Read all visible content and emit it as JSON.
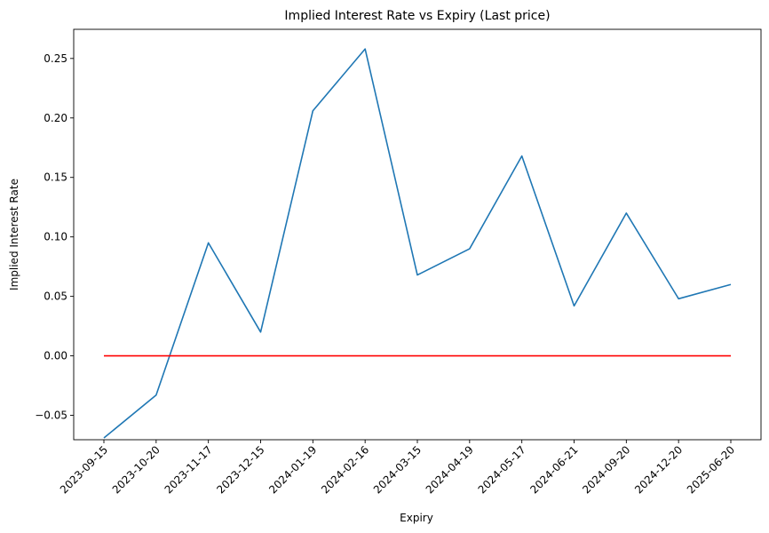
{
  "chart_data": {
    "type": "line",
    "title": "Implied Interest Rate vs Expiry (Last price)",
    "xlabel": "Expiry",
    "ylabel": "Implied Interest Rate",
    "categories": [
      "2023-09-15",
      "2023-10-20",
      "2023-11-17",
      "2023-12-15",
      "2024-01-19",
      "2024-02-16",
      "2024-03-15",
      "2024-04-19",
      "2024-05-17",
      "2024-06-21",
      "2024-09-20",
      "2024-12-20",
      "2025-06-20"
    ],
    "series": [
      {
        "color": "#1f77b4",
        "values": [
          -0.069,
          -0.033,
          0.095,
          0.02,
          0.206,
          0.258,
          0.068,
          0.09,
          0.168,
          0.042,
          0.12,
          0.048,
          0.06
        ]
      },
      {
        "color": "#ff0000",
        "values": [
          0,
          0,
          0,
          0,
          0,
          0,
          0,
          0,
          0,
          0,
          0,
          0,
          0
        ]
      }
    ],
    "yticks": [
      "−0.05",
      "0.00",
      "0.05",
      "0.10",
      "0.15",
      "0.20",
      "0.25"
    ],
    "ytick_values": [
      -0.05,
      0.0,
      0.05,
      0.1,
      0.15,
      0.2,
      0.25
    ],
    "ylim": [
      -0.0705,
      0.2745
    ],
    "grid": false,
    "legend": "none"
  }
}
